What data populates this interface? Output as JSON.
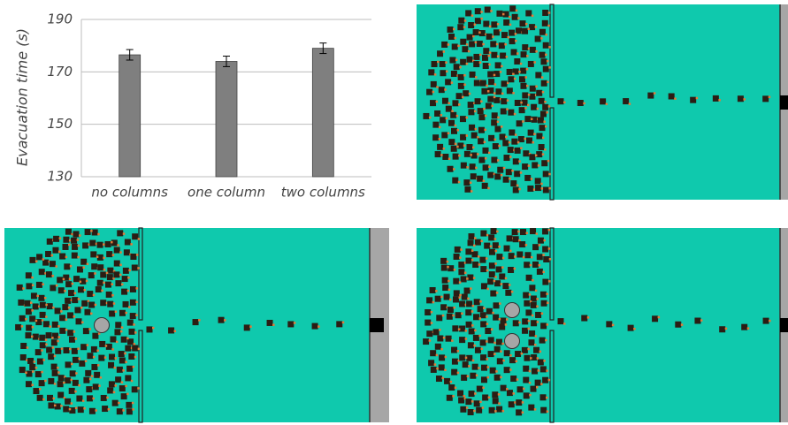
{
  "chart_data": {
    "type": "bar",
    "ylabel": "Evacuation time (s)",
    "categories": [
      "no columns",
      "one column",
      "two columns"
    ],
    "values": [
      176.5,
      174,
      179
    ],
    "errors": [
      2,
      2,
      2
    ],
    "color": "#7f7f7f",
    "ylim": [
      130,
      190
    ],
    "yticks": [
      130,
      150,
      170,
      190
    ],
    "grid": true
  }
}
